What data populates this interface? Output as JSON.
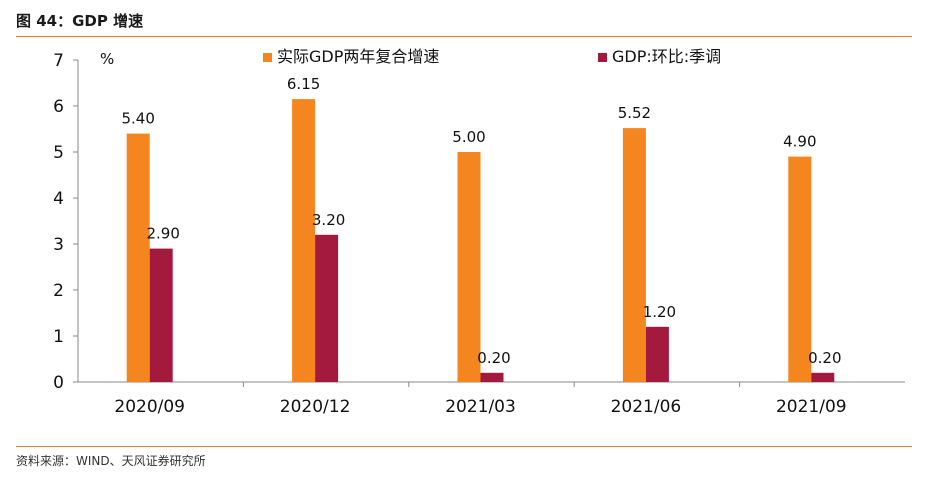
{
  "figure": {
    "title": "图 44：GDP 增速",
    "source": "资料来源：WIND、天风证券研究所"
  },
  "chart_data": {
    "type": "bar",
    "unit": "%",
    "categories": [
      "2020/09",
      "2020/12",
      "2021/03",
      "2021/06",
      "2021/09"
    ],
    "series": [
      {
        "name": "实际GDP两年复合增速",
        "color": "#f5861f",
        "values": [
          5.4,
          6.15,
          5.0,
          5.52,
          4.9
        ],
        "labels": [
          "5.40",
          "6.15",
          "5.00",
          "5.52",
          "4.90"
        ]
      },
      {
        "name": "GDP:环比:季调",
        "color": "#a31a3e",
        "values": [
          2.9,
          3.2,
          0.2,
          1.2,
          0.2
        ],
        "labels": [
          "2.90",
          "3.20",
          "0.20",
          "1.20",
          "0.20"
        ]
      }
    ],
    "ylim": [
      0,
      7
    ],
    "yticks": [
      "0",
      "1",
      "2",
      "3",
      "4",
      "5",
      "6",
      "7"
    ],
    "grid": false,
    "legend_position": "top"
  }
}
